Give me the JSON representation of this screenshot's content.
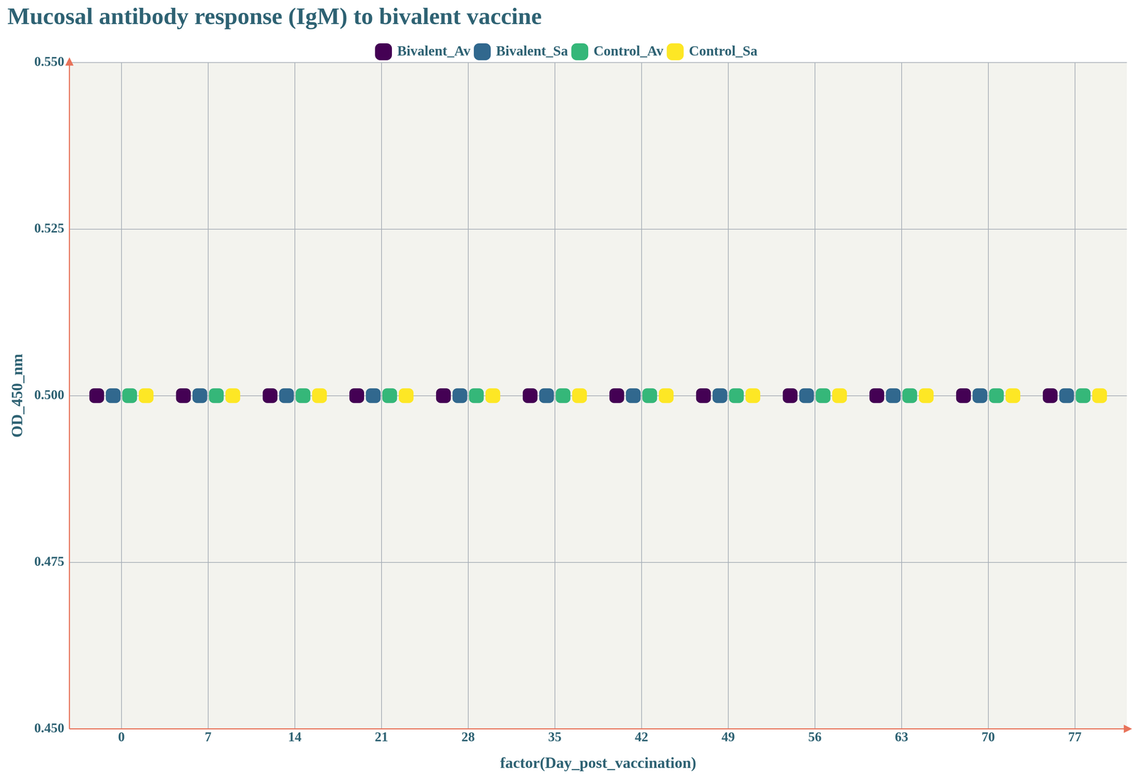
{
  "chart_data": {
    "type": "scatter",
    "title": "Mucosal antibody response (IgM) to bivalent vaccine",
    "x_label": "factor(Day_post_vaccination)",
    "y_label": "OD_450_nm",
    "categories": [
      "0",
      "7",
      "14",
      "21",
      "28",
      "35",
      "42",
      "49",
      "56",
      "63",
      "70",
      "77"
    ],
    "series": [
      {
        "name": "Bivalent_Av",
        "color": "#440154",
        "values": [
          0.5,
          0.5,
          0.5,
          0.5,
          0.5,
          0.5,
          0.5,
          0.5,
          0.5,
          0.5,
          0.5,
          0.5
        ]
      },
      {
        "name": "Bivalent_Sa",
        "color": "#31688e",
        "values": [
          0.5,
          0.5,
          0.5,
          0.5,
          0.5,
          0.5,
          0.5,
          0.5,
          0.5,
          0.5,
          0.5,
          0.5
        ]
      },
      {
        "name": "Control_Av",
        "color": "#35b779",
        "values": [
          0.5,
          0.5,
          0.5,
          0.5,
          0.5,
          0.5,
          0.5,
          0.5,
          0.5,
          0.5,
          0.5,
          0.5
        ]
      },
      {
        "name": "Control_Sa",
        "color": "#fde725",
        "values": [
          0.5,
          0.5,
          0.5,
          0.5,
          0.5,
          0.5,
          0.5,
          0.5,
          0.5,
          0.5,
          0.5,
          0.5
        ]
      }
    ],
    "ylim": [
      0.45,
      0.55
    ],
    "yticks": [
      {
        "value": 0.45,
        "label": "0.450"
      },
      0.475,
      {
        "value": 0.5,
        "label": "0.500"
      },
      0.525,
      {
        "value": 0.55,
        "label": "0.550"
      }
    ],
    "grid": true,
    "legend": "top",
    "marker": "circle"
  }
}
